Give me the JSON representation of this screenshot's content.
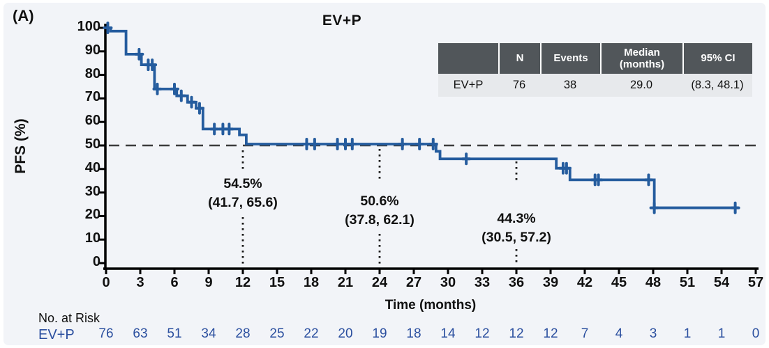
{
  "panel_label": "(A)",
  "chart_data": {
    "type": "line",
    "subtype": "kaplan-meier-step",
    "title": "EV+P",
    "xlabel": "Time (months)",
    "ylabel": "PFS (%)",
    "xlim": [
      0,
      57
    ],
    "ylim": [
      0,
      100
    ],
    "x_ticks": [
      0,
      3,
      6,
      9,
      12,
      15,
      18,
      21,
      24,
      27,
      30,
      33,
      36,
      39,
      42,
      45,
      48,
      51,
      54,
      57
    ],
    "y_ticks": [
      0,
      10,
      20,
      30,
      40,
      50,
      60,
      70,
      80,
      90,
      100
    ],
    "grid": false,
    "reference_line_y": 50,
    "series": [
      {
        "name": "EV+P",
        "end_month": 55.5,
        "steps": [
          [
            0,
            100
          ],
          [
            0.4,
            98.6
          ],
          [
            1.75,
            88.8
          ],
          [
            3.1,
            84.3
          ],
          [
            4.25,
            74
          ],
          [
            6.2,
            71.1
          ],
          [
            7.15,
            68.4
          ],
          [
            7.9,
            65.8
          ],
          [
            8.5,
            57
          ],
          [
            11.7,
            54.5
          ],
          [
            12.3,
            50.6
          ],
          [
            28.95,
            47.5
          ],
          [
            29.3,
            44.3
          ],
          [
            39.5,
            40.3
          ],
          [
            40.7,
            35.4
          ],
          [
            48.1,
            23.5
          ]
        ],
        "censors": [
          [
            0.15,
            100
          ],
          [
            2.9,
            88.8
          ],
          [
            3.7,
            84.3
          ],
          [
            4.05,
            84.3
          ],
          [
            4.5,
            74
          ],
          [
            6.0,
            74
          ],
          [
            6.6,
            71.1
          ],
          [
            7.5,
            68.4
          ],
          [
            8.2,
            65.8
          ],
          [
            9.5,
            57
          ],
          [
            10.25,
            57
          ],
          [
            10.8,
            57
          ],
          [
            17.6,
            50.6
          ],
          [
            18.3,
            50.6
          ],
          [
            20.3,
            50.6
          ],
          [
            21.0,
            50.6
          ],
          [
            21.6,
            50.6
          ],
          [
            26.0,
            50.6
          ],
          [
            27.5,
            50.6
          ],
          [
            28.7,
            50.6
          ],
          [
            31.6,
            44.3
          ],
          [
            40.1,
            40.3
          ],
          [
            40.4,
            40.3
          ],
          [
            42.9,
            35.4
          ],
          [
            43.2,
            35.4
          ],
          [
            47.6,
            35.4
          ],
          [
            48.1,
            23.5
          ],
          [
            55.2,
            23.5
          ]
        ]
      }
    ],
    "landmarks": [
      {
        "x": 12,
        "pct": "54.5%",
        "ci": "(41.7, 65.6)"
      },
      {
        "x": 24,
        "pct": "50.6%",
        "ci": "(37.8, 62.1)"
      },
      {
        "x": 36,
        "pct": "44.3%",
        "ci": "(30.5, 57.2)"
      }
    ]
  },
  "summary_table": {
    "headers": [
      "",
      "N",
      "Events",
      "Median\n(months)",
      "95% CI"
    ],
    "rows": [
      [
        "EV+P",
        "76",
        "38",
        "29.0",
        "(8.3, 48.1)"
      ]
    ]
  },
  "risk_table": {
    "label": "No. at Risk",
    "rows": [
      {
        "name": "EV+P",
        "values": [
          "76",
          "63",
          "51",
          "34",
          "28",
          "25",
          "22",
          "20",
          "19",
          "18",
          "14",
          "12",
          "12",
          "12",
          "7",
          "4",
          "3",
          "1",
          "1",
          "0"
        ]
      }
    ]
  },
  "colors": {
    "curve": "#255c9e",
    "risk_text": "#2b4f9f",
    "table_header_bg": "#51565a",
    "table_header_text": "#ffffff",
    "table_row_bg": "#e7e9ec",
    "dashed_line": "#3c3c3c",
    "dotted_line": "#1a1a1a",
    "axis": "#000000",
    "panel_bg": "#f2f4f8"
  }
}
